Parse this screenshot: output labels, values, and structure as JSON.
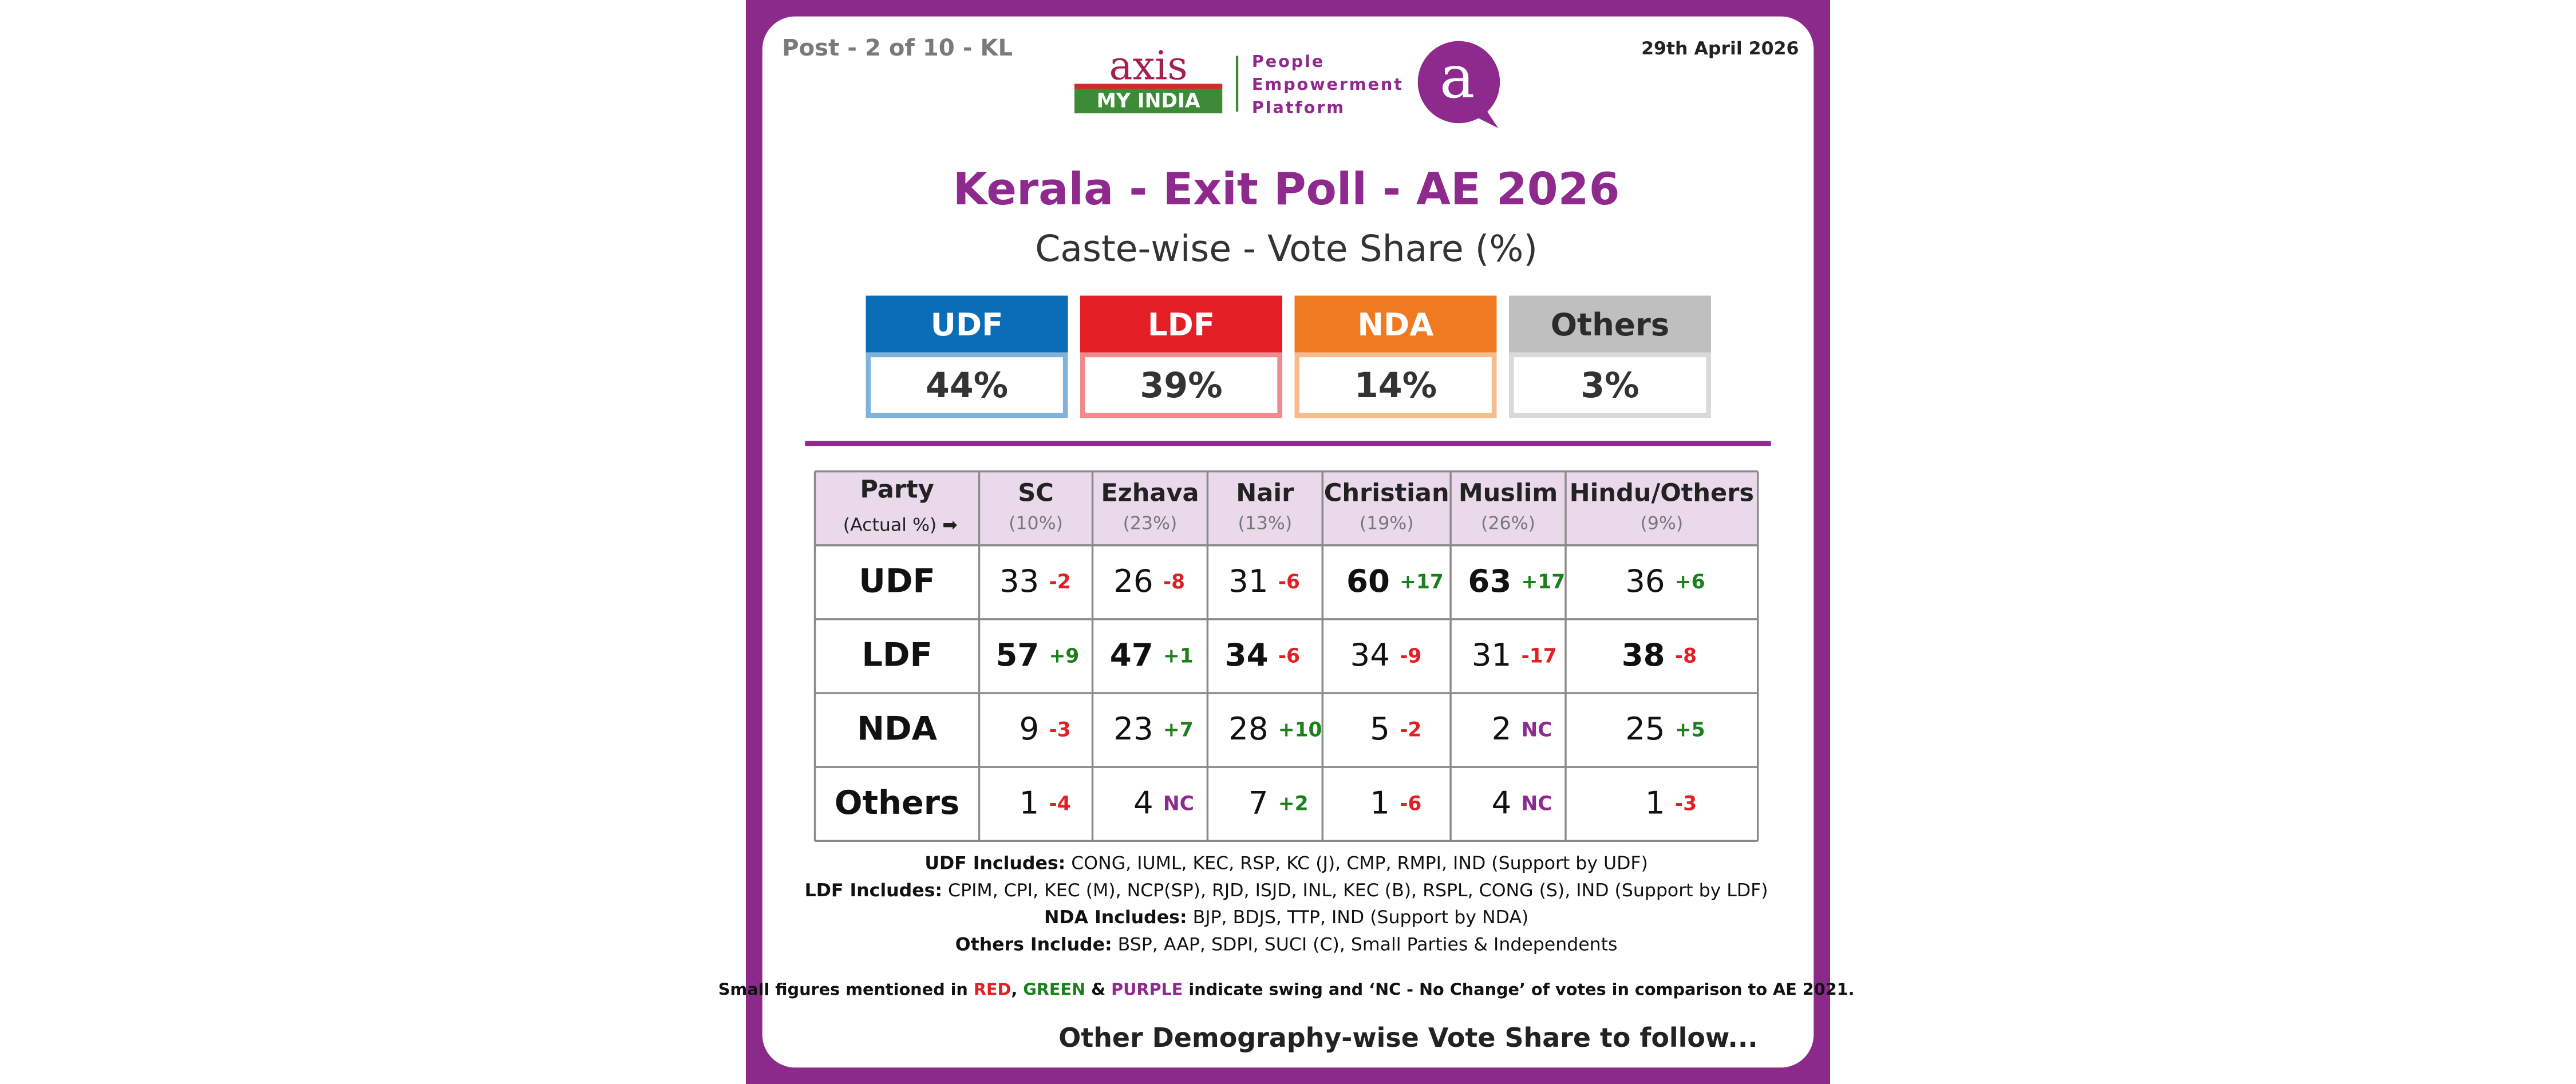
{
  "header": {
    "post": "Post - 2 of 10 - KL",
    "date": "29th April 2026",
    "logo": {
      "axis": "axis",
      "my_india": "MY INDIA",
      "tagline": [
        "People",
        "Empowerment",
        "Platform"
      ],
      "badge": "a"
    },
    "title": "Kerala - Exit Poll - AE 2026",
    "subtitle": "Caste-wise - Vote Share (%)"
  },
  "summary": [
    {
      "party": "UDF",
      "share": "44%",
      "color": "#0b6db7",
      "light": "#7fb3dc",
      "text_color": "#ffffff"
    },
    {
      "party": "LDF",
      "share": "39%",
      "color": "#e31e25",
      "light": "#ef8a8e",
      "text_color": "#ffffff"
    },
    {
      "party": "NDA",
      "share": "14%",
      "color": "#f07a1f",
      "light": "#f6bc8d",
      "text_color": "#ffffff"
    },
    {
      "party": "Others",
      "share": "3%",
      "color": "#bfbfbf",
      "light": "#d9d9d9",
      "text_color": "#2b2b2b"
    }
  ],
  "table": {
    "corner": {
      "title": "Party",
      "note": "(Actual %) ➡"
    },
    "columns": [
      {
        "name": "SC",
        "share": "(10%)"
      },
      {
        "name": "Ezhava",
        "share": "(23%)"
      },
      {
        "name": "Nair",
        "share": "(13%)"
      },
      {
        "name": "Christian",
        "share": "(19%)"
      },
      {
        "name": "Muslim",
        "share": "(26%)"
      },
      {
        "name": "Hindu/Others",
        "share": "(9%)"
      }
    ],
    "rows": [
      {
        "party": "UDF",
        "cells": [
          {
            "value": "33",
            "swing": "-2"
          },
          {
            "value": "26",
            "swing": "-8"
          },
          {
            "value": "31",
            "swing": "-6"
          },
          {
            "value": "60",
            "swing": "+17",
            "bold": true
          },
          {
            "value": "63",
            "swing": "+17",
            "bold": true
          },
          {
            "value": "36",
            "swing": "+6"
          }
        ]
      },
      {
        "party": "LDF",
        "cells": [
          {
            "value": "57",
            "swing": "+9",
            "bold": true
          },
          {
            "value": "47",
            "swing": "+1",
            "bold": true
          },
          {
            "value": "34",
            "swing": "-6",
            "bold": true
          },
          {
            "value": "34",
            "swing": "-9"
          },
          {
            "value": "31",
            "swing": "-17"
          },
          {
            "value": "38",
            "swing": "-8",
            "bold": true
          }
        ]
      },
      {
        "party": "NDA",
        "cells": [
          {
            "value": "9",
            "swing": "-3"
          },
          {
            "value": "23",
            "swing": "+7"
          },
          {
            "value": "28",
            "swing": "+10"
          },
          {
            "value": "5",
            "swing": "-2"
          },
          {
            "value": "2",
            "swing": "NC"
          },
          {
            "value": "25",
            "swing": "+5"
          }
        ]
      },
      {
        "party": "Others",
        "cells": [
          {
            "value": "1",
            "swing": "-4"
          },
          {
            "value": "4",
            "swing": "NC"
          },
          {
            "value": "7",
            "swing": "+2"
          },
          {
            "value": "1",
            "swing": "-6"
          },
          {
            "value": "4",
            "swing": "NC"
          },
          {
            "value": "1",
            "swing": "-3"
          }
        ]
      }
    ]
  },
  "notes": [
    {
      "label": "UDF Includes:",
      "text": " CONG, IUML, KEC, RSP, KC (J), CMP, RMPI, IND (Support by UDF)"
    },
    {
      "label": "LDF Includes:",
      "text": " CPIM, CPI, KEC (M), NCP(SP), RJD, ISJD, INL, KEC (B), RSPL, CONG (S), IND (Support by LDF)"
    },
    {
      "label": "NDA Includes:",
      "text": " BJP, BDJS, TTP, IND (Support by NDA)"
    },
    {
      "label": "Others Include:",
      "text": " BSP, AAP, SDPI, SUCI (C), Small Parties & Independents"
    }
  ],
  "legend": [
    {
      "text": "Small figures mentioned in ",
      "color": "#111111"
    },
    {
      "text": "RED",
      "color": "#e31e25"
    },
    {
      "text": ", ",
      "color": "#111111"
    },
    {
      "text": "GREEN",
      "color": "#1b7f1b"
    },
    {
      "text": " & ",
      "color": "#111111"
    },
    {
      "text": "PURPLE",
      "color": "#8e2a8e"
    },
    {
      "text": " indicate swing and ‘NC - No Change’ of votes in comparison to AE 2021.",
      "color": "#111111"
    }
  ],
  "footer": "Other Demography-wise Vote Share to follow..."
}
